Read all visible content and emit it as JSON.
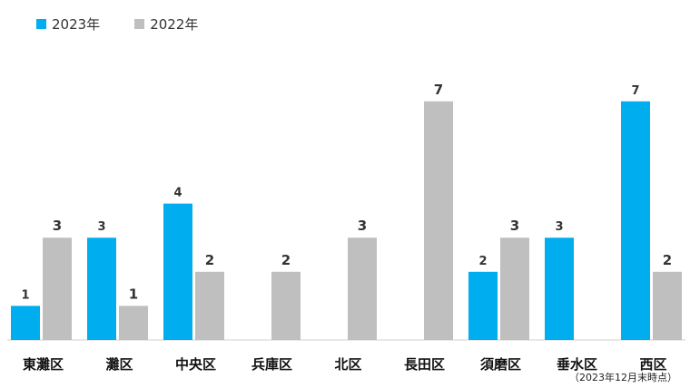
{
  "legend": [
    {
      "label": "2023年",
      "color": "#00AEEF"
    },
    {
      "label": "2022年",
      "color": "#BFBFBF"
    }
  ],
  "note": "（2023年12月末時点）",
  "chart_data": {
    "type": "bar",
    "categories": [
      "東灘区",
      "灘区",
      "中央区",
      "兵庫区",
      "北区",
      "長田区",
      "須磨区",
      "垂水区",
      "西区"
    ],
    "series": [
      {
        "name": "2023年",
        "color": "#00AEEF",
        "values": [
          1,
          3,
          4,
          null,
          null,
          null,
          2,
          3,
          7
        ]
      },
      {
        "name": "2022年",
        "color": "#BFBFBF",
        "values": [
          3,
          1,
          2,
          2,
          3,
          7,
          3,
          null,
          2
        ]
      }
    ],
    "ylim": [
      0,
      7
    ],
    "grid": false,
    "legend_position": "top-left"
  }
}
